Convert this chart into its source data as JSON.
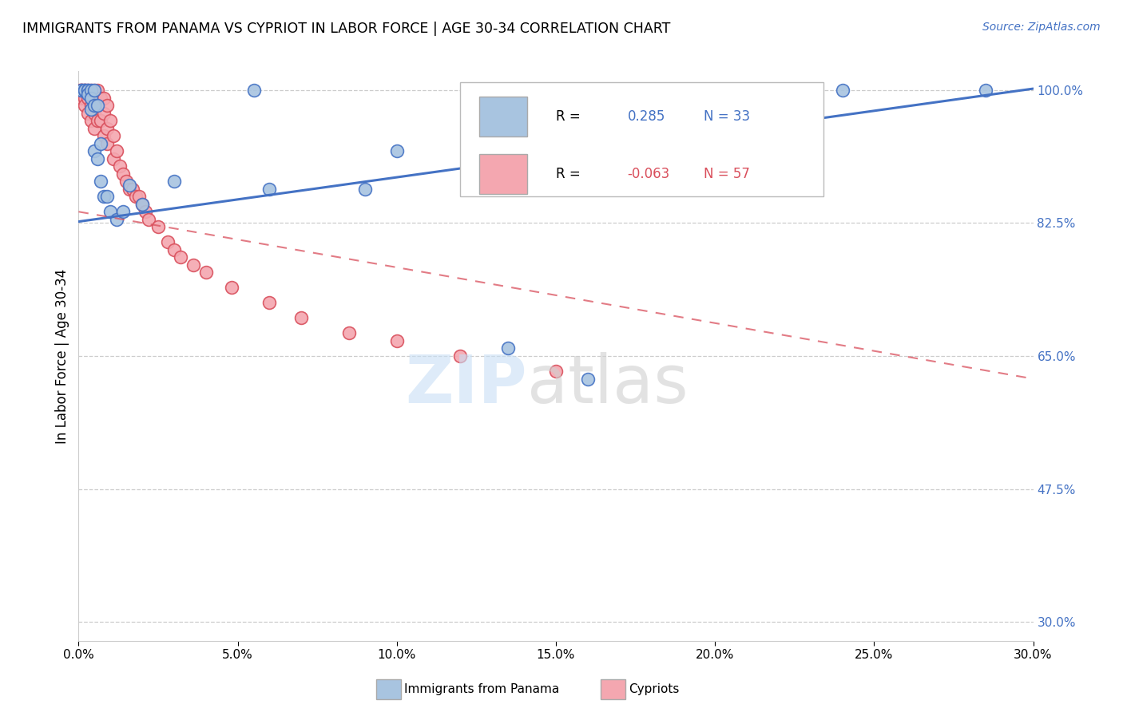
{
  "title": "IMMIGRANTS FROM PANAMA VS CYPRIOT IN LABOR FORCE | AGE 30-34 CORRELATION CHART",
  "source": "Source: ZipAtlas.com",
  "ylabel": "In Labor Force | Age 30-34",
  "xlim": [
    0.0,
    0.3
  ],
  "ylim": [
    0.275,
    1.025
  ],
  "xtick_labels": [
    "0.0%",
    "5.0%",
    "10.0%",
    "15.0%",
    "20.0%",
    "25.0%",
    "30.0%"
  ],
  "xtick_vals": [
    0.0,
    0.05,
    0.1,
    0.15,
    0.2,
    0.25,
    0.3
  ],
  "ytick_labels": [
    "30.0%",
    "47.5%",
    "65.0%",
    "82.5%",
    "100.0%"
  ],
  "ytick_vals": [
    0.3,
    0.475,
    0.65,
    0.825,
    1.0
  ],
  "r_panama": 0.285,
  "n_panama": 33,
  "r_cypriot": -0.063,
  "n_cypriot": 57,
  "color_panama": "#a8c4e0",
  "color_cypriot": "#f4a7b0",
  "line_color_panama": "#4472c4",
  "line_color_cypriot": "#d94f5c",
  "panama_line_y0": 0.827,
  "panama_line_y1": 1.002,
  "cypriot_line_y0": 0.84,
  "cypriot_line_y1": 0.62,
  "panama_x": [
    0.001,
    0.001,
    0.002,
    0.002,
    0.003,
    0.003,
    0.003,
    0.004,
    0.004,
    0.004,
    0.005,
    0.005,
    0.005,
    0.006,
    0.006,
    0.007,
    0.007,
    0.008,
    0.009,
    0.01,
    0.012,
    0.014,
    0.016,
    0.02,
    0.03,
    0.055,
    0.06,
    0.09,
    0.1,
    0.135,
    0.16,
    0.24,
    0.285
  ],
  "panama_y": [
    1.0,
    1.0,
    1.0,
    1.0,
    1.0,
    1.0,
    0.995,
    1.0,
    0.99,
    0.975,
    1.0,
    0.98,
    0.92,
    0.98,
    0.91,
    0.93,
    0.88,
    0.86,
    0.86,
    0.84,
    0.83,
    0.84,
    0.875,
    0.85,
    0.88,
    1.0,
    0.87,
    0.87,
    0.92,
    0.66,
    0.62,
    1.0,
    1.0
  ],
  "cypriot_x": [
    0.0005,
    0.001,
    0.001,
    0.001,
    0.002,
    0.002,
    0.002,
    0.002,
    0.003,
    0.003,
    0.003,
    0.004,
    0.004,
    0.004,
    0.004,
    0.005,
    0.005,
    0.005,
    0.005,
    0.006,
    0.006,
    0.006,
    0.007,
    0.007,
    0.008,
    0.008,
    0.008,
    0.009,
    0.009,
    0.009,
    0.01,
    0.011,
    0.011,
    0.012,
    0.013,
    0.014,
    0.015,
    0.016,
    0.017,
    0.018,
    0.019,
    0.02,
    0.021,
    0.022,
    0.025,
    0.028,
    0.03,
    0.032,
    0.036,
    0.04,
    0.048,
    0.06,
    0.07,
    0.085,
    0.1,
    0.12,
    0.15
  ],
  "cypriot_y": [
    1.0,
    1.0,
    1.0,
    0.99,
    1.0,
    1.0,
    0.99,
    0.98,
    1.0,
    0.99,
    0.97,
    1.0,
    0.99,
    0.98,
    0.96,
    1.0,
    0.99,
    0.97,
    0.95,
    1.0,
    0.98,
    0.96,
    0.99,
    0.96,
    0.99,
    0.97,
    0.94,
    0.98,
    0.95,
    0.93,
    0.96,
    0.94,
    0.91,
    0.92,
    0.9,
    0.89,
    0.88,
    0.87,
    0.87,
    0.86,
    0.86,
    0.85,
    0.84,
    0.83,
    0.82,
    0.8,
    0.79,
    0.78,
    0.77,
    0.76,
    0.74,
    0.72,
    0.7,
    0.68,
    0.67,
    0.65,
    0.63
  ]
}
